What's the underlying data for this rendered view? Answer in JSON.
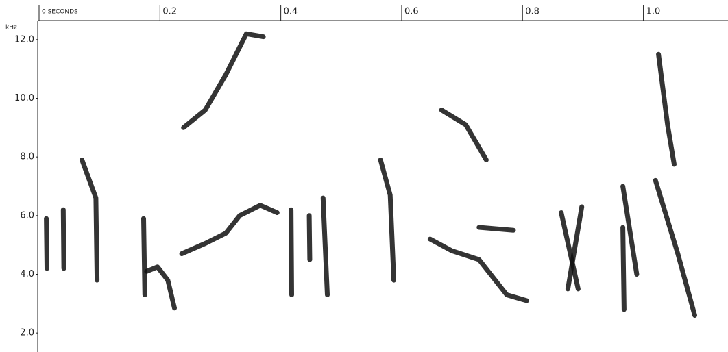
{
  "chart_data": {
    "type": "spectrogram",
    "y_label": "kHz",
    "xlim": [
      0,
      1.14
    ],
    "xticks": [
      {
        "value": 0,
        "label": "0 SECONDS"
      },
      0.2,
      0.4,
      0.6,
      0.8,
      {
        "value": 1,
        "label": "1.0"
      }
    ],
    "ylim": [
      1.35,
      12.65
    ],
    "yticks": [
      {
        "value": 2,
        "label": "2.0"
      },
      {
        "value": 4,
        "label": "4.0"
      },
      {
        "value": 6,
        "label": "6.0"
      },
      {
        "value": 8,
        "label": "8.0"
      },
      {
        "value": 10,
        "label": "10.0"
      },
      {
        "value": 12,
        "label": "12.0"
      }
    ],
    "color": "#111111",
    "traces": [
      {
        "x": [
          0.012,
          0.013
        ],
        "y": [
          5.9,
          4.2
        ]
      },
      {
        "x": [
          0.04,
          0.041
        ],
        "y": [
          6.2,
          4.2
        ]
      },
      {
        "x": [
          0.071,
          0.094,
          0.096
        ],
        "y": [
          7.9,
          6.6,
          3.8
        ]
      },
      {
        "x": [
          0.173,
          0.175
        ],
        "y": [
          5.9,
          3.3
        ]
      },
      {
        "x": [
          0.178,
          0.196,
          0.213,
          0.224
        ],
        "y": [
          4.1,
          4.25,
          3.8,
          2.85
        ]
      },
      {
        "x": [
          0.236,
          0.275,
          0.309,
          0.332,
          0.366,
          0.394
        ],
        "y": [
          4.7,
          5.05,
          5.4,
          6.0,
          6.35,
          6.1
        ]
      },
      {
        "x": [
          0.239,
          0.275,
          0.309,
          0.343,
          0.371
        ],
        "y": [
          9.0,
          9.6,
          10.8,
          12.2,
          12.1
        ]
      },
      {
        "x": [
          0.417,
          0.418
        ],
        "y": [
          6.2,
          3.3
        ]
      },
      {
        "x": [
          0.447,
          0.448
        ],
        "y": [
          6.0,
          4.5
        ]
      },
      {
        "x": [
          0.47,
          0.477
        ],
        "y": [
          6.6,
          3.3
        ]
      },
      {
        "x": [
          0.565,
          0.581,
          0.587
        ],
        "y": [
          7.9,
          6.7,
          3.8
        ]
      },
      {
        "x": [
          0.647,
          0.683,
          0.728,
          0.774,
          0.807
        ],
        "y": [
          5.2,
          4.8,
          4.5,
          3.3,
          3.1
        ]
      },
      {
        "x": [
          0.728,
          0.785
        ],
        "y": [
          5.6,
          5.5
        ]
      },
      {
        "x": [
          0.666,
          0.706,
          0.74
        ],
        "y": [
          9.6,
          9.1,
          7.9
        ]
      },
      {
        "x": [
          0.864,
          0.892
        ],
        "y": [
          6.1,
          3.5
        ]
      },
      {
        "x": [
          0.898,
          0.875
        ],
        "y": [
          6.3,
          3.5
        ]
      },
      {
        "x": [
          0.966,
          0.989
        ],
        "y": [
          7.0,
          4.0
        ]
      },
      {
        "x": [
          0.966,
          0.968
        ],
        "y": [
          5.6,
          2.8
        ]
      },
      {
        "x": [
          1.02,
          1.057,
          1.085
        ],
        "y": [
          7.2,
          4.7,
          2.6
        ]
      },
      {
        "x": [
          1.025,
          1.04,
          1.051
        ],
        "y": [
          11.5,
          9.1,
          7.75
        ]
      }
    ]
  }
}
